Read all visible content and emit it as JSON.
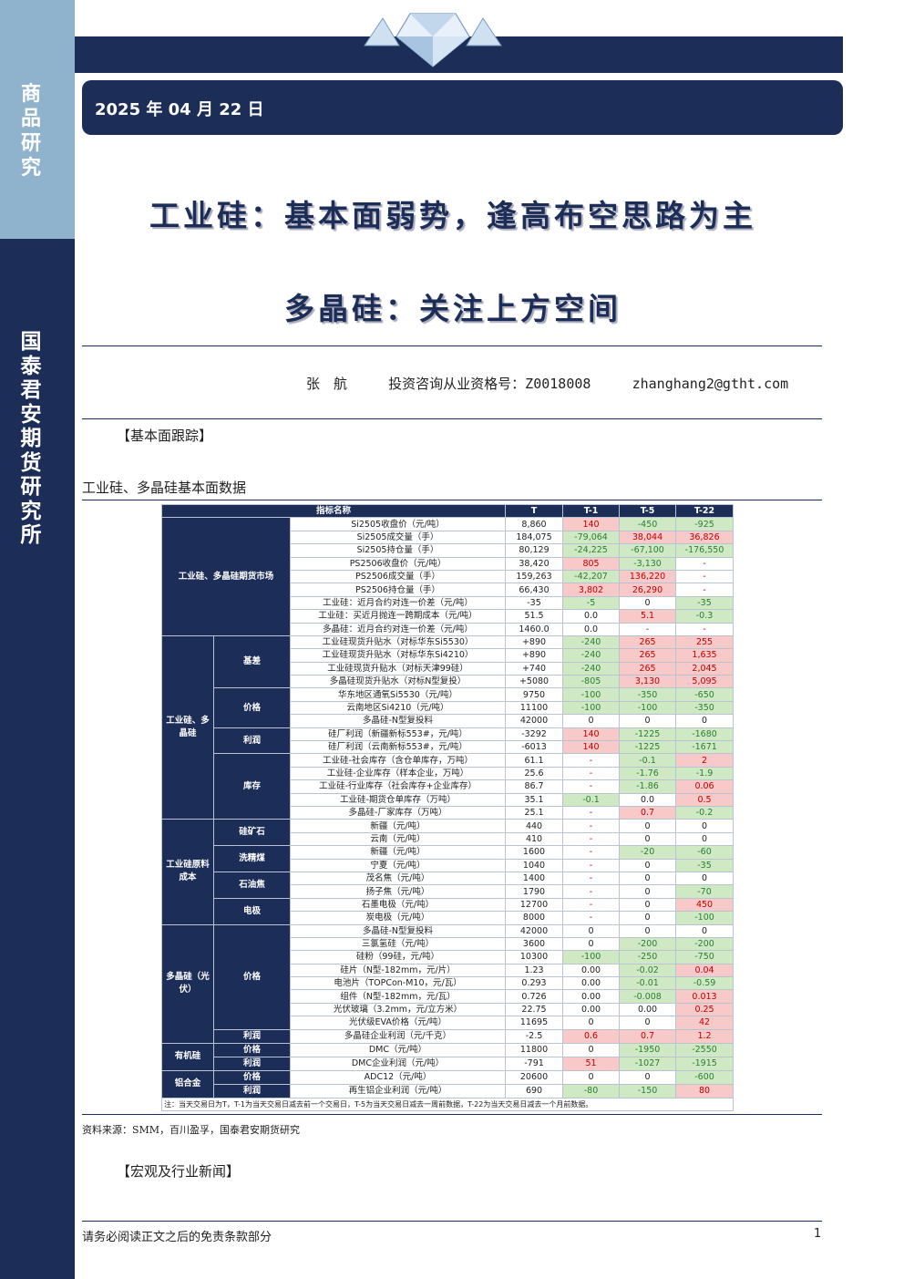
{
  "sidebar": {
    "top_label": "商品研究",
    "bottom_label": "国泰君安期货研究所"
  },
  "header": {
    "date": "2025 年 04 月 22 日"
  },
  "titles": {
    "main": "工业硅：基本面弱势，逢高布空思路为主",
    "sub": "多晶硅：关注上方空间"
  },
  "author": {
    "name": "张　航",
    "license": "投资咨询从业资格号：Z0018008",
    "email": "zhanghang2@gtht.com"
  },
  "sections": {
    "fundamentals": "【基本面跟踪】",
    "news": "【宏观及行业新闻】"
  },
  "figure_title": "工业硅、多晶硅基本面数据",
  "table": {
    "headers": [
      "指标名称",
      "T",
      "T-1",
      "T-5",
      "T-22"
    ],
    "groups": {
      "futures": "工业硅、多晶硅期货市场",
      "spot": "工业硅、多晶硅",
      "cost": "工业硅原料成本",
      "poly": "多晶硅（光伏）",
      "organic": "有机硅",
      "alloy": "铝合金"
    },
    "subgroups": {
      "basis": "基差",
      "price": "价格",
      "profit": "利润",
      "inventory": "库存",
      "quartz": "硅矿石",
      "washed_coal": "洗精煤",
      "petcoke": "石油焦",
      "electrode": "电极",
      "poly_price": "价格",
      "poly_profit": "利润",
      "org_price": "价格",
      "org_profit": "利润",
      "al_price": "价格",
      "al_profit": "利润"
    },
    "rows": [
      {
        "name": "Si2505收盘价（元/吨）",
        "t": "8,860",
        "t1": "140",
        "t5": "-450",
        "t22": "-925"
      },
      {
        "name": "Si2505成交量（手）",
        "t": "184,075",
        "t1": "-79,064",
        "t5": "38,044",
        "t22": "36,826"
      },
      {
        "name": "Si2505持仓量（手）",
        "t": "80,129",
        "t1": "-24,225",
        "t5": "-67,100",
        "t22": "-176,550"
      },
      {
        "name": "PS2506收盘价（元/吨）",
        "t": "38,420",
        "t1": "805",
        "t5": "-3,130",
        "t22": "-"
      },
      {
        "name": "PS2506成交量（手）",
        "t": "159,263",
        "t1": "-42,207",
        "t5": "136,220",
        "t22": "-"
      },
      {
        "name": "PS2506持仓量（手）",
        "t": "66,430",
        "t1": "3,802",
        "t5": "26,290",
        "t22": "-"
      },
      {
        "name": "工业硅：近月合约对连一价差（元/吨）",
        "t": "-35",
        "t1": "-5",
        "t5": "0",
        "t22": "-35"
      },
      {
        "name": "工业硅：买近月抛连一跨期成本（元/吨）",
        "t": "51.5",
        "t1": "0.0",
        "t5": "5.1",
        "t22": "-0.3"
      },
      {
        "name": "多晶硅：近月合约对连一价差（元/吨）",
        "t": "1460.0",
        "t1": "0.0",
        "t5": "-",
        "t22": "-"
      },
      {
        "name": "工业硅现货升贴水（对标华东Si5530）",
        "t": "+890",
        "t1": "-240",
        "t5": "265",
        "t22": "255"
      },
      {
        "name": "工业硅现货升贴水（对标华东Si4210）",
        "t": "+890",
        "t1": "-240",
        "t5": "265",
        "t22": "1,635"
      },
      {
        "name": "工业硅现货升贴水（对标天津99硅）",
        "t": "+740",
        "t1": "-240",
        "t5": "265",
        "t22": "2,045"
      },
      {
        "name": "多晶硅现货升贴水（对标N型复投）",
        "t": "+5080",
        "t1": "-805",
        "t5": "3,130",
        "t22": "5,095"
      },
      {
        "name": "华东地区通氧Si5530（元/吨）",
        "t": "9750",
        "t1": "-100",
        "t5": "-350",
        "t22": "-650"
      },
      {
        "name": "云南地区Si4210（元/吨）",
        "t": "11100",
        "t1": "-100",
        "t5": "-100",
        "t22": "-350"
      },
      {
        "name": "多晶硅-N型复投料",
        "t": "42000",
        "t1": "0",
        "t5": "0",
        "t22": "0"
      },
      {
        "name": "硅厂利润（新疆新标553#，元/吨）",
        "t": "-3292",
        "t1": "140",
        "t5": "-1225",
        "t22": "-1680"
      },
      {
        "name": "硅厂利润（云南新标553#，元/吨）",
        "t": "-6013",
        "t1": "140",
        "t5": "-1225",
        "t22": "-1671"
      },
      {
        "name": "工业硅-社会库存（含仓单库存，万吨）",
        "t": "61.1",
        "t1": "-",
        "t5": "-0.1",
        "t22": "2"
      },
      {
        "name": "工业硅-企业库存（样本企业，万吨）",
        "t": "25.6",
        "t1": "-",
        "t5": "-1.76",
        "t22": "-1.9"
      },
      {
        "name": "工业硅-行业库存（社会库存+企业库存）",
        "t": "86.7",
        "t1": "-",
        "t5": "-1.86",
        "t22": "0.06"
      },
      {
        "name": "工业硅-期货仓单库存（万吨）",
        "t": "35.1",
        "t1": "-0.1",
        "t5": "0.0",
        "t22": "0.5"
      },
      {
        "name": "多晶硅-厂家库存（万吨）",
        "t": "25.1",
        "t1": "-",
        "t5": "0.7",
        "t22": "-0.2"
      },
      {
        "name": "新疆（元/吨）",
        "t": "440",
        "t1": "-",
        "t5": "0",
        "t22": "0"
      },
      {
        "name": "云南（元/吨）",
        "t": "410",
        "t1": "-",
        "t5": "0",
        "t22": "0"
      },
      {
        "name": "新疆（元/吨）",
        "t": "1600",
        "t1": "-",
        "t5": "-20",
        "t22": "-60"
      },
      {
        "name": "宁夏（元/吨）",
        "t": "1040",
        "t1": "-",
        "t5": "0",
        "t22": "-35"
      },
      {
        "name": "茂名焦（元/吨）",
        "t": "1400",
        "t1": "-",
        "t5": "0",
        "t22": "0"
      },
      {
        "name": "扬子焦（元/吨）",
        "t": "1790",
        "t1": "-",
        "t5": "0",
        "t22": "-70"
      },
      {
        "name": "石墨电极（元/吨）",
        "t": "12700",
        "t1": "-",
        "t5": "0",
        "t22": "450"
      },
      {
        "name": "炭电极（元/吨）",
        "t": "8000",
        "t1": "-",
        "t5": "0",
        "t22": "-100"
      },
      {
        "name": "多晶硅-N型复投料",
        "t": "42000",
        "t1": "0",
        "t5": "0",
        "t22": "0"
      },
      {
        "name": "三氯氢硅（元/吨）",
        "t": "3600",
        "t1": "0",
        "t5": "-200",
        "t22": "-200"
      },
      {
        "name": "硅粉（99硅，元/吨）",
        "t": "10300",
        "t1": "-100",
        "t5": "-250",
        "t22": "-750"
      },
      {
        "name": "硅片（N型-182mm，元/片）",
        "t": "1.23",
        "t1": "0.00",
        "t5": "-0.02",
        "t22": "0.04"
      },
      {
        "name": "电池片（TOPCon-M10，元/瓦）",
        "t": "0.293",
        "t1": "0.00",
        "t5": "-0.01",
        "t22": "-0.59"
      },
      {
        "name": "组件（N型-182mm，元/瓦）",
        "t": "0.726",
        "t1": "0.00",
        "t5": "-0.008",
        "t22": "0.013"
      },
      {
        "name": "光伏玻璃（3.2mm，元/立方米）",
        "t": "22.75",
        "t1": "0.00",
        "t5": "0.00",
        "t22": "0.25"
      },
      {
        "name": "光伏级EVA价格（元/吨）",
        "t": "11695",
        "t1": "0",
        "t5": "0",
        "t22": "42"
      },
      {
        "name": "多晶硅企业利润（元/千克）",
        "t": "-2.5",
        "t1": "0.6",
        "t5": "0.7",
        "t22": "1.2"
      },
      {
        "name": "DMC（元/吨）",
        "t": "11800",
        "t1": "0",
        "t5": "-1950",
        "t22": "-2550"
      },
      {
        "name": "DMC企业利润（元/吨）",
        "t": "-791",
        "t1": "51",
        "t5": "-1027",
        "t22": "-1915"
      },
      {
        "name": "ADC12（元/吨）",
        "t": "20600",
        "t1": "0",
        "t5": "0",
        "t22": "-600"
      },
      {
        "name": "再生铝企业利润（元/吨）",
        "t": "690",
        "t1": "-80",
        "t5": "-150",
        "t22": "80"
      }
    ],
    "note": "注：当天交易日为T，T-1为当天交易日减去前一个交易日，T-5为当天交易日减去一周前数据，T-22为当天交易日减去一个月前数据。"
  },
  "source": "资料来源：SMM，百川盈孚，国泰君安期货研究",
  "footer": {
    "disclaimer": "请务必阅读正文之后的免责条款部分",
    "page": "1"
  },
  "colors": {
    "navy": "#1c2d57",
    "sidebar_light": "#8fb3cc",
    "pos_fill": "#f8c9c9",
    "neg_fill": "#cfe9c5"
  }
}
